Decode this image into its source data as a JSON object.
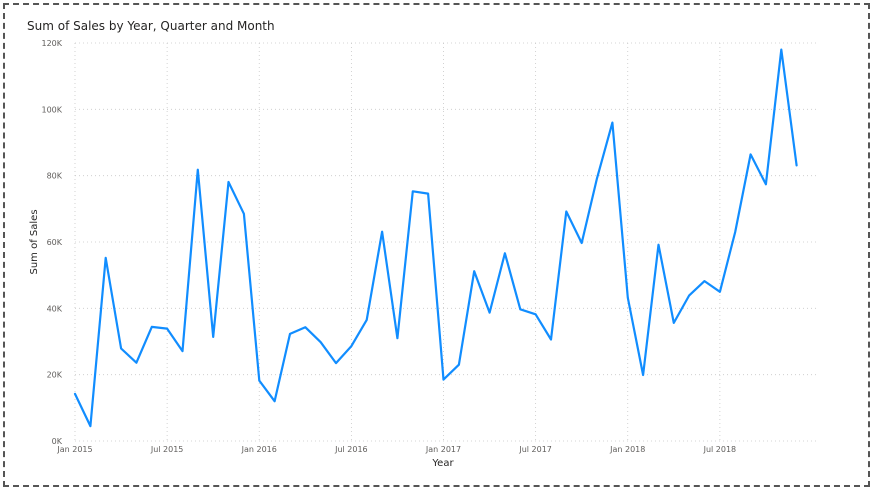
{
  "chart_data": {
    "type": "line",
    "title": "Sum of Sales by Year, Quarter and Month",
    "xlabel": "Year",
    "ylabel": "Sum of Sales",
    "x_tick_labels": [
      "Jan 2015",
      "Jul 2015",
      "Jan 2016",
      "Jul 2016",
      "Jan 2017",
      "Jul 2017",
      "Jan 2018",
      "Jul 2018"
    ],
    "y_tick_labels": [
      "0K",
      "20K",
      "40K",
      "60K",
      "80K",
      "100K",
      "120K"
    ],
    "ylim": [
      0,
      120000
    ],
    "grid": true,
    "color": "#118dff",
    "series": [
      {
        "x": [
          "2015-01",
          "2015-02",
          "2015-03",
          "2015-04",
          "2015-05",
          "2015-06",
          "2015-07",
          "2015-08",
          "2015-09",
          "2015-10",
          "2015-11",
          "2015-12",
          "2016-01",
          "2016-02",
          "2016-03",
          "2016-04",
          "2016-05",
          "2016-06",
          "2016-07",
          "2016-08",
          "2016-09",
          "2016-10",
          "2016-11",
          "2016-12",
          "2017-01",
          "2017-02",
          "2017-03",
          "2017-04",
          "2017-05",
          "2017-06",
          "2017-07",
          "2017-08",
          "2017-09",
          "2017-10",
          "2017-11",
          "2017-12",
          "2018-01",
          "2018-02",
          "2018-03",
          "2018-04",
          "2018-05",
          "2018-06",
          "2018-07",
          "2018-08",
          "2018-09",
          "2018-10",
          "2018-11",
          "2018-12"
        ],
        "values": [
          14200,
          4500,
          55200,
          27900,
          23600,
          34400,
          33900,
          27100,
          81800,
          31400,
          78100,
          68500,
          18200,
          12000,
          32300,
          34300,
          29800,
          23500,
          28600,
          36500,
          63100,
          31000,
          75300,
          74600,
          18500,
          23000,
          51200,
          38700,
          56600,
          39700,
          38200,
          30600,
          69200,
          59700,
          79200,
          96000,
          43200,
          19900,
          59200,
          35600,
          43900,
          48200,
          45000,
          63000,
          86400,
          77400,
          118000,
          83100
        ]
      }
    ]
  }
}
